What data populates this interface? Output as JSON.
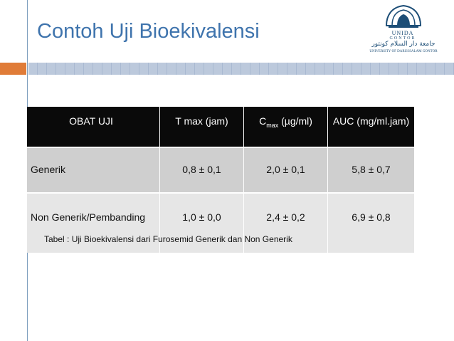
{
  "slide": {
    "title": "Contoh Uji Bioekivalensi"
  },
  "logo": {
    "name": "UNIDA",
    "sub": "GONTOR",
    "arabic": "جامعة دار السلام كونتور",
    "university": "UNIVERSITY OF DARUSSALAM GONTOR"
  },
  "table": {
    "headers": {
      "col1": "OBAT UJI",
      "col2": "T max (jam)",
      "col3_main": "C",
      "col3_sub": "max",
      "col3_unit": "(µg/ml)",
      "col4": "AUC (mg/ml.jam)"
    },
    "rows": [
      {
        "obat": "Generik",
        "tmax": "0,8 ± 0,1",
        "cmax": "2,0 ± 0,1",
        "auc": "5,8 ± 0,7"
      },
      {
        "obat": "Non Generik/Pembanding",
        "tmax": "1,0 ± 0,0",
        "cmax": "2,4 ± 0,2",
        "auc": "6,9 ± 0,8"
      }
    ],
    "caption": "Tabel : Uji Bioekivalensi dari Furosemid Generik dan Non Generik"
  },
  "colors": {
    "title": "#3f74ad",
    "accent_orange": "#e07c38",
    "band_blue": "#bcc9dc",
    "header_bg": "#0a0a0a",
    "row1_bg": "#cfcfcf",
    "row2_bg": "#e6e6e6"
  }
}
